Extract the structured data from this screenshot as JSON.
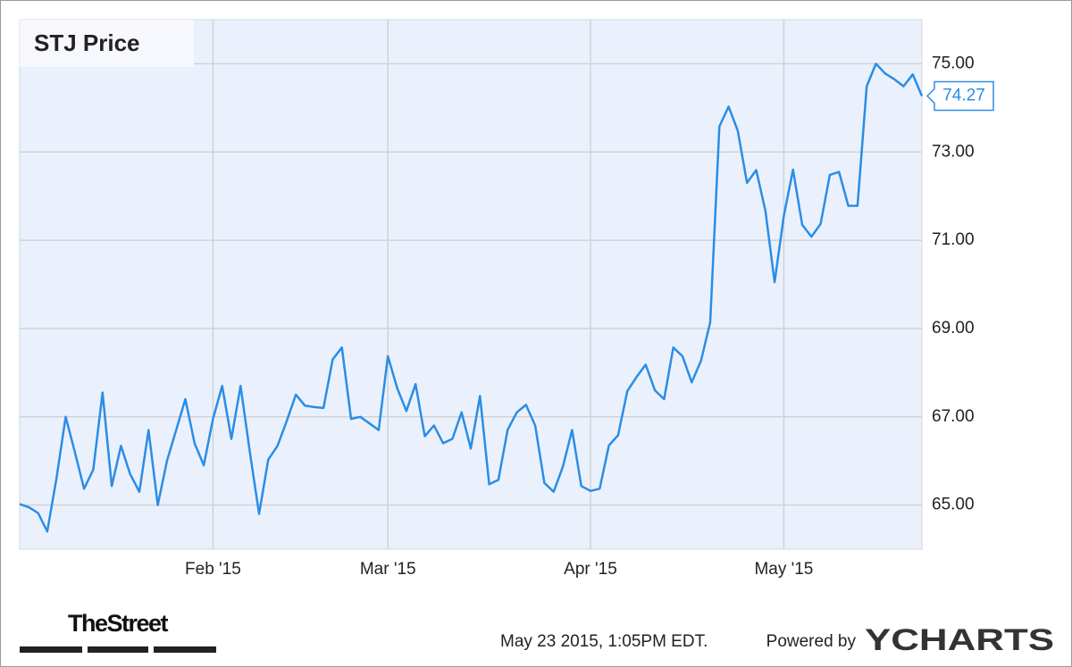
{
  "chart_data": {
    "type": "line",
    "title": "STJ Price",
    "categories": [
      null,
      null,
      null,
      null,
      null,
      null,
      null,
      null,
      null,
      null,
      null,
      null,
      null,
      null,
      null,
      null,
      null,
      null,
      null,
      null,
      null,
      "Feb '15",
      null,
      null,
      null,
      null,
      null,
      null,
      null,
      null,
      null,
      null,
      null,
      null,
      null,
      null,
      null,
      null,
      null,
      null,
      "Mar '15",
      null,
      null,
      null,
      null,
      null,
      null,
      null,
      null,
      null,
      null,
      null,
      null,
      null,
      null,
      null,
      null,
      null,
      null,
      null,
      null,
      null,
      "Apr '15",
      null,
      null,
      null,
      null,
      null,
      null,
      null,
      null,
      null,
      null,
      null,
      null,
      null,
      null,
      null,
      null,
      null,
      null,
      null,
      null,
      "May '15",
      null,
      null,
      null,
      null,
      null,
      null,
      null,
      null,
      null,
      null,
      null,
      null,
      null,
      null,
      null
    ],
    "series": [
      {
        "name": "STJ Price",
        "color": "#2a8de6",
        "values": [
          65.02,
          64.95,
          64.82,
          64.4,
          65.6,
          67.0,
          66.2,
          65.37,
          65.8,
          67.55,
          65.43,
          66.34,
          65.7,
          65.3,
          66.7,
          65.0,
          66.0,
          66.7,
          67.4,
          66.4,
          65.9,
          66.95,
          67.7,
          66.5,
          67.7,
          66.2,
          64.8,
          66.03,
          66.34,
          66.9,
          67.5,
          67.25,
          67.22,
          67.2,
          68.3,
          68.57,
          66.95,
          67.0,
          66.85,
          66.7,
          68.37,
          67.65,
          67.13,
          67.74,
          66.56,
          66.8,
          66.4,
          66.5,
          67.1,
          66.28,
          67.47,
          65.47,
          65.57,
          66.7,
          67.1,
          67.27,
          66.8,
          65.5,
          65.3,
          65.87,
          66.7,
          65.43,
          65.32,
          65.37,
          66.35,
          66.58,
          67.58,
          67.9,
          68.18,
          67.6,
          67.4,
          68.57,
          68.37,
          67.78,
          68.27,
          69.14,
          73.58,
          74.03,
          73.48,
          72.3,
          72.59,
          71.67,
          70.05,
          71.55,
          72.6,
          71.35,
          71.08,
          71.37,
          72.48,
          72.55,
          71.78,
          71.78,
          74.49,
          75.0,
          74.78,
          74.65,
          74.49,
          74.76,
          74.27
        ]
      }
    ],
    "ylim": [
      64,
      76
    ],
    "yticks": [
      {
        "value": 65,
        "label": "65.00"
      },
      {
        "value": 67,
        "label": "67.00"
      },
      {
        "value": 69,
        "label": "69.00"
      },
      {
        "value": 71,
        "label": "71.00"
      },
      {
        "value": 73,
        "label": "73.00"
      },
      {
        "value": 75,
        "label": "75.00"
      }
    ],
    "grid": true,
    "source_logo": "TheStreet",
    "timestamp": "May 23 2015, 1:05PM EDT.",
    "powered_by": "Powered by",
    "brand": "YCHARTS"
  }
}
